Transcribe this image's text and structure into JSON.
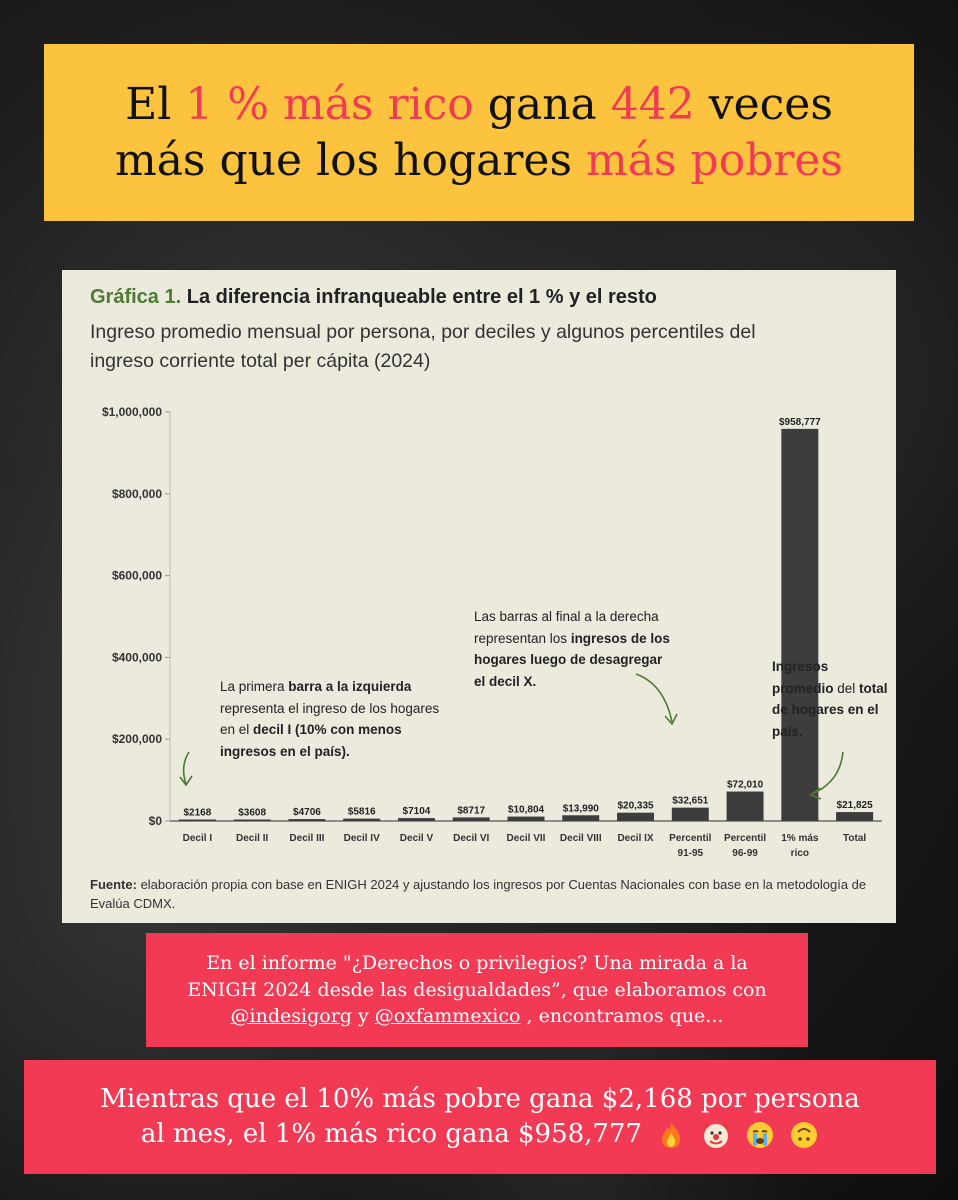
{
  "headline": {
    "line1": {
      "a": "El ",
      "b": "1 % más rico",
      "c": " gana ",
      "d": "442",
      "e": " veces"
    },
    "line2": {
      "a": "más que  los hogares ",
      "b": "más pobres"
    }
  },
  "chart": {
    "title_label": "Gráfica 1.",
    "title_text": " La diferencia infranqueable entre el 1 % y el resto",
    "subtitle": "Ingreso promedio mensual por persona, por deciles y algunos percentiles del ingreso corriente total per cápita (2024)",
    "annotations": {
      "left": [
        {
          "t": "La primera "
        },
        {
          "t": "barra a la izquierda",
          "b": true
        },
        {
          "t": " representa el ingreso de los hogares en el "
        },
        {
          "t": "decil I (10% con menos ingresos en el país).",
          "b": true
        }
      ],
      "middle": [
        {
          "t": "Las barras al final a la derecha representan los "
        },
        {
          "t": "ingresos de los hogares luego de desagregar el decil X.",
          "b": true
        }
      ],
      "right": [
        {
          "t": "Ingresos promedio",
          "b": true
        },
        {
          "t": " del "
        },
        {
          "t": "total de hogares en el país.",
          "b": true
        }
      ]
    },
    "source_label": "Fuente:",
    "source_text": " elaboración propia con base en ENIGH 2024 y ajustando los ingresos por Cuentas Nacionales con base en la metodología de Evalúa CDMX.",
    "bar_color": "#3d3d3d"
  },
  "chart_data": {
    "type": "bar",
    "title": "Gráfica 1. La diferencia infranqueable entre el 1 % y el resto",
    "subtitle": "Ingreso promedio mensual por persona, por deciles y algunos percentiles del ingreso corriente total per cápita (2024)",
    "categories": [
      [
        "Decil I"
      ],
      [
        "Decil II"
      ],
      [
        "Decil III"
      ],
      [
        "Decil IV"
      ],
      [
        "Decil V"
      ],
      [
        "Decil VI"
      ],
      [
        "Decil VII"
      ],
      [
        "Decil VIII"
      ],
      [
        "Decil IX"
      ],
      [
        "Percentil",
        "91-95"
      ],
      [
        "Percentil",
        "96-99"
      ],
      [
        "1% más",
        "rico"
      ],
      [
        "Total"
      ]
    ],
    "values": [
      2168,
      3608,
      4706,
      5816,
      7104,
      8717,
      10804,
      13990,
      20335,
      32651,
      72010,
      958777,
      21825
    ],
    "data_labels": [
      "$2168",
      "$3608",
      "$4706",
      "$5816",
      "$7104",
      "$8717",
      "$10,804",
      "$13,990",
      "$20,335",
      "$32,651",
      "$72,010",
      "$958,777",
      "$21,825"
    ],
    "ylim": [
      0,
      1000000
    ],
    "yticks": [
      0,
      200000,
      400000,
      600000,
      800000,
      1000000
    ],
    "ytick_labels": [
      "$0",
      "$200,000",
      "$400,000",
      "$600,000",
      "$800,000",
      "$1,000,000"
    ],
    "grid": false,
    "legend": "none"
  },
  "info": {
    "line1": "En el informe \"¿Derechos o privilegios? Una mirada a la",
    "line2": "ENIGH 2024 desde las desigualdades”, que elaboramos con",
    "mention1": "@indesigorg",
    "mid": " y ",
    "mention2": "@oxfammexico",
    "end": " , encontramos que..."
  },
  "bottom": {
    "line1": "Mientras que el 10% más pobre gana $2,168 por persona",
    "line2": "al mes, el 1% más rico gana $958,777"
  },
  "emojis": [
    "fire-emoji",
    "clown-emoji",
    "crying-emoji",
    "upside-down-face-emoji"
  ]
}
